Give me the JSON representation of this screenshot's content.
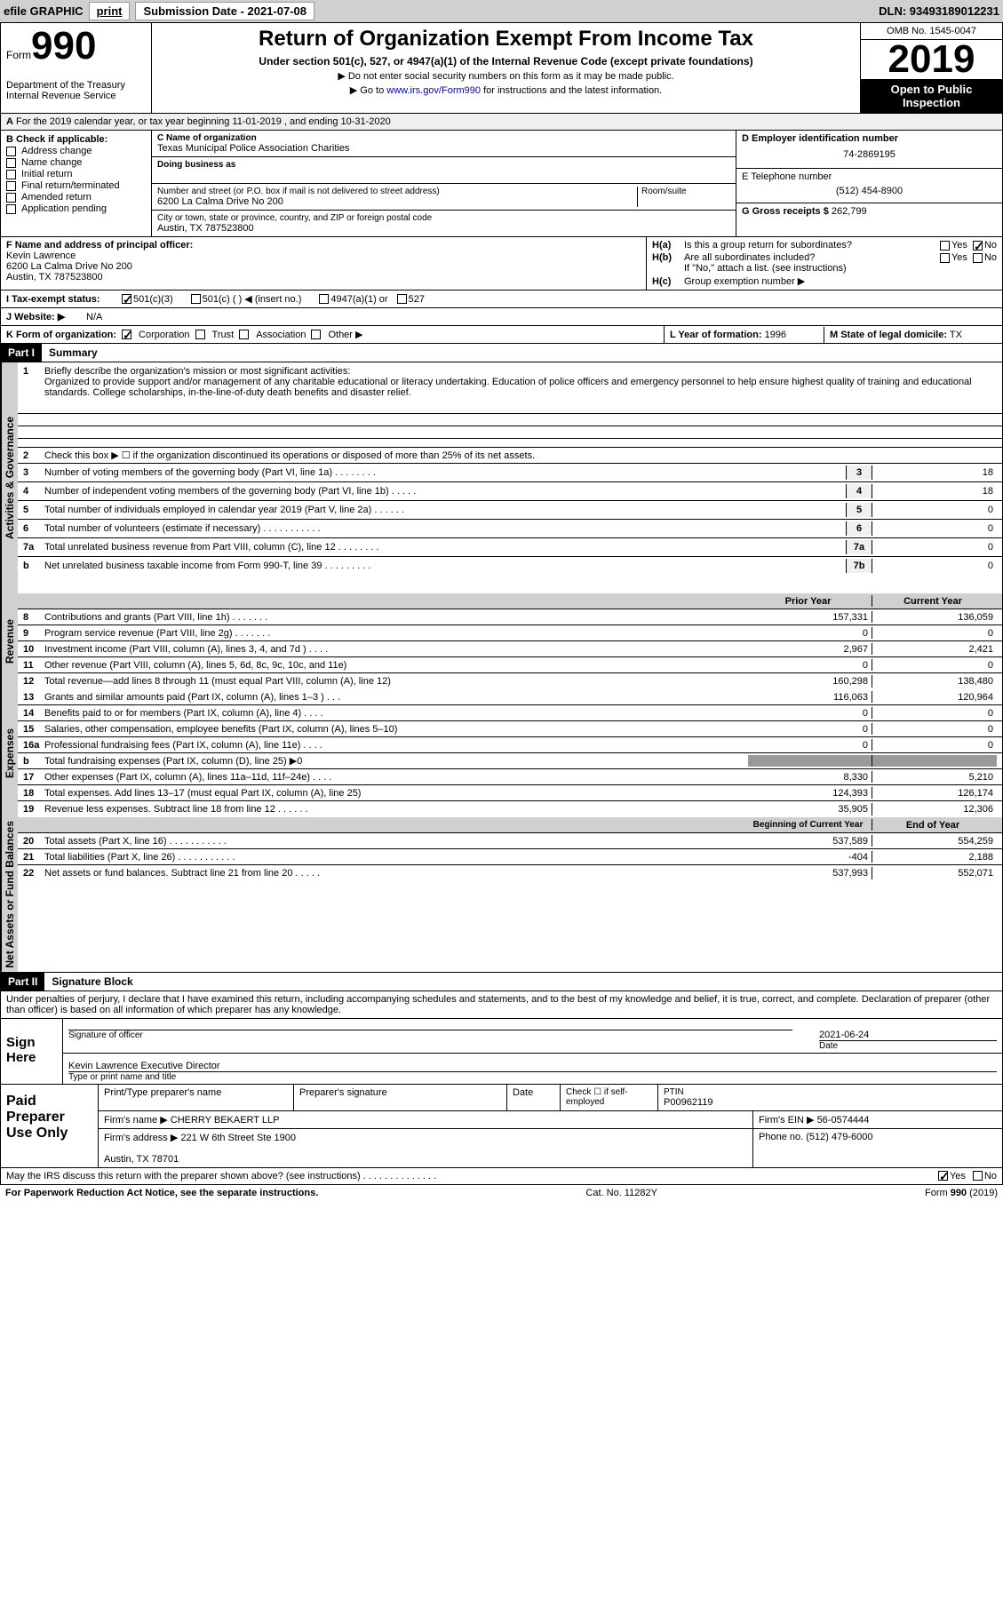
{
  "header_bar": {
    "efile": "efile GRAPHIC",
    "print": "print",
    "submission": "Submission Date - 2021-07-08",
    "dln": "DLN: 93493189012231"
  },
  "form": {
    "form_word": "Form",
    "number": "990",
    "dept": "Department of the Treasury\nInternal Revenue Service",
    "title": "Return of Organization Exempt From Income Tax",
    "subtitle": "Under section 501(c), 527, or 4947(a)(1) of the Internal Revenue Code (except private foundations)",
    "note1": "▶ Do not enter social security numbers on this form as it may be made public.",
    "note2_pre": "▶ Go to ",
    "note2_link": "www.irs.gov/Form990",
    "note2_post": " for instructions and the latest information.",
    "omb": "OMB No. 1545-0047",
    "year": "2019",
    "inspection": "Open to Public Inspection"
  },
  "section_a": "For the 2019 calendar year, or tax year beginning 11-01-2019    , and ending 10-31-2020",
  "box_b": {
    "title": "B Check if applicable:",
    "items": [
      "Address change",
      "Name change",
      "Initial return",
      "Final return/terminated",
      "Amended return",
      "Application pending"
    ]
  },
  "box_c": {
    "lbl_name": "C Name of organization",
    "org_name": "Texas Municipal Police Association Charities",
    "dba_lbl": "Doing business as",
    "street_lbl": "Number and street (or P.O. box if mail is not delivered to street address)",
    "room_lbl": "Room/suite",
    "street": "6200 La Calma Drive No 200",
    "city_lbl": "City or town, state or province, country, and ZIP or foreign postal code",
    "city": "Austin, TX  787523800"
  },
  "box_d": {
    "lbl": "D Employer identification number",
    "val": "74-2869195"
  },
  "box_e": {
    "lbl": "E Telephone number",
    "val": "(512) 454-8900"
  },
  "box_g": {
    "lbl": "G Gross receipts $",
    "val": "262,799"
  },
  "box_f": {
    "lbl": "F  Name and address of principal officer:",
    "name": "Kevin Lawrence",
    "addr1": "6200 La Calma Drive No 200",
    "addr2": "Austin, TX  787523800"
  },
  "box_h": {
    "ha": "Is this a group return for subordinates?",
    "hb": "Are all subordinates included?",
    "hb_note": "If \"No,\" attach a list. (see instructions)",
    "hc": "Group exemption number ▶",
    "ha_lbl": "H(a)",
    "hb_lbl": "H(b)",
    "hc_lbl": "H(c)",
    "yes": "Yes",
    "no": "No"
  },
  "line_i": {
    "lbl": "I  Tax-exempt status:",
    "opt1": "501(c)(3)",
    "opt2": "501(c) (  ) ◀ (insert no.)",
    "opt3": "4947(a)(1) or",
    "opt4": "527"
  },
  "line_j": {
    "lbl": "J  Website: ▶",
    "val": "N/A"
  },
  "line_k": {
    "lbl": "K Form of organization:",
    "corp": "Corporation",
    "trust": "Trust",
    "assoc": "Association",
    "other": "Other ▶"
  },
  "line_l": {
    "lbl": "L Year of formation:",
    "val": "1996"
  },
  "line_m": {
    "lbl": "M State of legal domicile:",
    "val": "TX"
  },
  "part1": {
    "header": "Part I",
    "title": "Summary",
    "q1_lbl": "1",
    "q1": "Briefly describe the organization's mission or most significant activities:",
    "q1_text": "Organized to provide support and/or management of any charitable educational or literacy undertaking. Education of police officers and emergency personnel to help ensure highest quality of training and educational standards. College scholarships, in-the-line-of-duty death benefits and disaster relief.",
    "q2_lbl": "2",
    "q2": "Check this box ▶ ☐  if the organization discontinued its operations or disposed of more than 25% of its net assets.",
    "sections": {
      "governance": "Activities & Governance",
      "revenue": "Revenue",
      "expenses": "Expenses",
      "netassets": "Net Assets or Fund Balances"
    },
    "governance_lines": [
      {
        "n": "3",
        "t": "Number of voting members of the governing body (Part VI, line 1a)   .    .    .    .    .    .    .    .",
        "box": "3",
        "v": "18"
      },
      {
        "n": "4",
        "t": "Number of independent voting members of the governing body (Part VI, line 1b)   .    .    .    .    .",
        "box": "4",
        "v": "18"
      },
      {
        "n": "5",
        "t": "Total number of individuals employed in calendar year 2019 (Part V, line 2a)   .    .    .    .    .    .",
        "box": "5",
        "v": "0"
      },
      {
        "n": "6",
        "t": "Total number of volunteers (estimate if necessary)   .    .    .    .    .    .    .    .    .    .    .",
        "box": "6",
        "v": "0"
      },
      {
        "n": "7a",
        "t": "Total unrelated business revenue from Part VIII, column (C), line 12   .    .    .    .    .    .    .    .",
        "box": "7a",
        "v": "0"
      },
      {
        "n": "b",
        "t": "Net unrelated business taxable income from Form 990-T, line 39   .    .    .    .    .    .    .    .    .",
        "box": "7b",
        "v": "0"
      }
    ],
    "rev_hdr": {
      "prior": "Prior Year",
      "current": "Current Year"
    },
    "revenue_lines": [
      {
        "n": "8",
        "t": "Contributions and grants (Part VIII, line 1h)    .    .    .    .    .    .    .",
        "p": "157,331",
        "c": "136,059"
      },
      {
        "n": "9",
        "t": "Program service revenue (Part VIII, line 2g)   .    .    .    .    .    .    .",
        "p": "0",
        "c": "0"
      },
      {
        "n": "10",
        "t": "Investment income (Part VIII, column (A), lines 3, 4, and 7d )    .    .    .    .",
        "p": "2,967",
        "c": "2,421"
      },
      {
        "n": "11",
        "t": "Other revenue (Part VIII, column (A), lines 5, 6d, 8c, 9c, 10c, and 11e)",
        "p": "0",
        "c": "0"
      },
      {
        "n": "12",
        "t": "Total revenue—add lines 8 through 11 (must equal Part VIII, column (A), line 12)",
        "p": "160,298",
        "c": "138,480"
      }
    ],
    "expense_lines": [
      {
        "n": "13",
        "t": "Grants and similar amounts paid (Part IX, column (A), lines 1–3 )   .    .    .",
        "p": "116,063",
        "c": "120,964"
      },
      {
        "n": "14",
        "t": "Benefits paid to or for members (Part IX, column (A), line 4)   .    .    .    .",
        "p": "0",
        "c": "0"
      },
      {
        "n": "15",
        "t": "Salaries, other compensation, employee benefits (Part IX, column (A), lines 5–10)",
        "p": "0",
        "c": "0"
      },
      {
        "n": "16a",
        "t": "Professional fundraising fees (Part IX, column (A), line 11e)   .    .    .    .",
        "p": "0",
        "c": "0"
      },
      {
        "n": "b",
        "t": "Total fundraising expenses (Part IX, column (D), line 25) ▶0",
        "p": "",
        "c": "",
        "shaded": true
      },
      {
        "n": "17",
        "t": "Other expenses (Part IX, column (A), lines 11a–11d, 11f–24e)   .    .    .    .",
        "p": "8,330",
        "c": "5,210"
      },
      {
        "n": "18",
        "t": "Total expenses. Add lines 13–17 (must equal Part IX, column (A), line 25)",
        "p": "124,393",
        "c": "126,174"
      },
      {
        "n": "19",
        "t": "Revenue less expenses. Subtract line 18 from line 12   .    .    .    .    .    .",
        "p": "35,905",
        "c": "12,306"
      }
    ],
    "net_hdr": {
      "begin": "Beginning of Current Year",
      "end": "End of Year"
    },
    "netassets_lines": [
      {
        "n": "20",
        "t": "Total assets (Part X, line 16)   .    .    .    .    .    .    .    .    .    .    .",
        "p": "537,589",
        "c": "554,259"
      },
      {
        "n": "21",
        "t": "Total liabilities (Part X, line 26)   .    .    .    .    .    .    .    .    .    .    .",
        "p": "-404",
        "c": "2,188"
      },
      {
        "n": "22",
        "t": "Net assets or fund balances. Subtract line 21 from line 20   .    .    .    .    .",
        "p": "537,993",
        "c": "552,071"
      }
    ]
  },
  "part2": {
    "header": "Part II",
    "title": "Signature Block",
    "declaration": "Under penalties of perjury, I declare that I have examined this return, including accompanying schedules and statements, and to the best of my knowledge and belief, it is true, correct, and complete. Declaration of preparer (other than officer) is based on all information of which preparer has any knowledge.",
    "sign_here": "Sign Here",
    "sig_officer": "Signature of officer",
    "sig_date": "2021-06-24",
    "date_lbl": "Date",
    "officer_name": "Kevin Lawrence  Executive Director",
    "type_name": "Type or print name and title",
    "paid": "Paid Preparer Use Only",
    "prep_name_lbl": "Print/Type preparer's name",
    "prep_sig_lbl": "Preparer's signature",
    "prep_date_lbl": "Date",
    "self_emp": "Check ☐ if self-employed",
    "ptin_lbl": "PTIN",
    "ptin": "P00962119",
    "firm_name_lbl": "Firm's name    ▶",
    "firm_name": "CHERRY BEKAERT LLP",
    "firm_ein_lbl": "Firm's EIN ▶",
    "firm_ein": "56-0574444",
    "firm_addr_lbl": "Firm's address ▶",
    "firm_addr": "221 W 6th Street Ste 1900\n\nAustin, TX  78701",
    "phone_lbl": "Phone no.",
    "phone": "(512) 479-6000",
    "discuss": "May the IRS discuss this return with the preparer shown above? (see instructions)   .    .    .    .    .    .    .    .    .    .    .    .    .    .",
    "yes": "Yes",
    "no": "No"
  },
  "footer": {
    "left": "For Paperwork Reduction Act Notice, see the separate instructions.",
    "center": "Cat. No. 11282Y",
    "right": "Form 990 (2019)"
  }
}
